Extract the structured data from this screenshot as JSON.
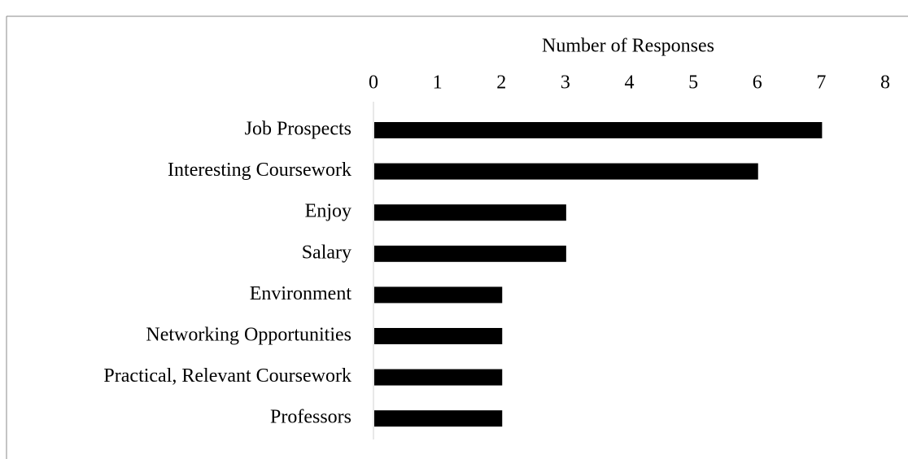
{
  "chart_data": {
    "type": "bar",
    "orientation": "horizontal",
    "x_label": "Number of Responses",
    "categories": [
      "Job Prospects",
      "Interesting Coursework",
      "Enjoy",
      "Salary",
      "Environment",
      "Networking Opportunities",
      "Practical, Relevant Coursework",
      "Professors"
    ],
    "values": [
      7,
      6,
      3,
      3,
      2,
      2,
      2,
      2
    ],
    "color": "#000000",
    "xlim": [
      0,
      8
    ],
    "xticks": [
      0,
      1,
      2,
      3,
      4,
      5,
      6,
      7,
      8
    ],
    "grid": false
  }
}
